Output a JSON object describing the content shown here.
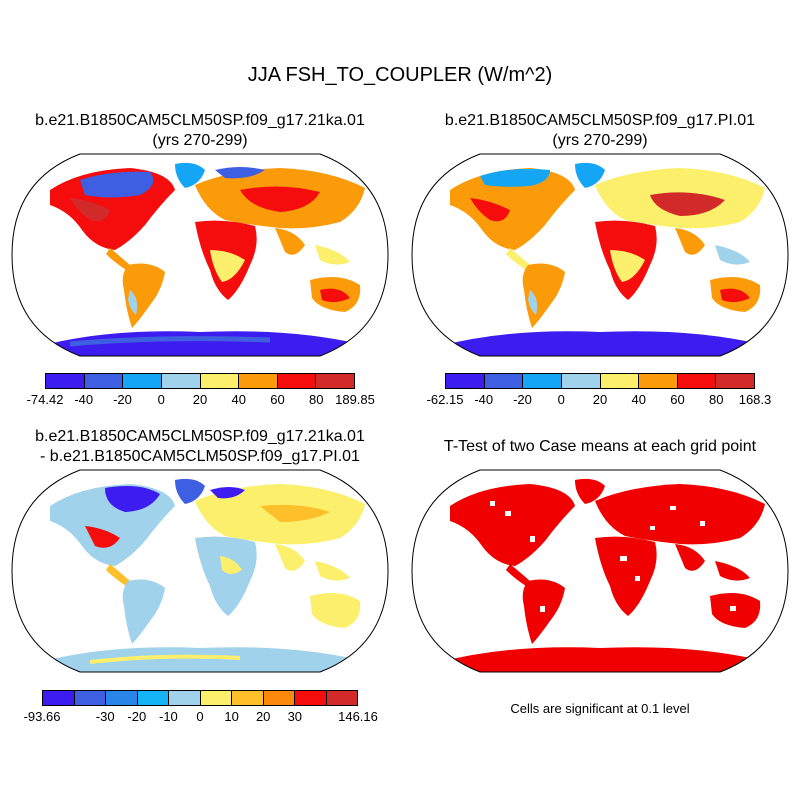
{
  "title": "JJA FSH_TO_COUPLER (W/m^2)",
  "panels": [
    {
      "title_line1": "b.e21.B1850CAM5CLM50SP.f09_g17.21ka.01",
      "title_line2": "(yrs 270-299)",
      "colorbar": {
        "colors": [
          "#3d1cf0",
          "#3f5fe2",
          "#14a6f5",
          "#a0d2ec",
          "#fcef6c",
          "#fb9b0a",
          "#f50d0d",
          "#d22929"
        ],
        "labels": [
          "-74.42",
          "-40",
          "-20",
          "0",
          "20",
          "40",
          "60",
          "80",
          "189.85"
        ]
      }
    },
    {
      "title_line1": "b.e21.B1850CAM5CLM50SP.f09_g17.PI.01",
      "title_line2": "(yrs 270-299)",
      "colorbar": {
        "colors": [
          "#3d1cf0",
          "#3f5fe2",
          "#14a6f5",
          "#a0d2ec",
          "#fcef6c",
          "#fb9b0a",
          "#f50d0d",
          "#d22929"
        ],
        "labels": [
          "-62.15",
          "-40",
          "-20",
          "0",
          "20",
          "40",
          "60",
          "80",
          "168.3"
        ]
      }
    },
    {
      "title_line1": "b.e21.B1850CAM5CLM50SP.f09_g17.21ka.01",
      "title_line2": "- b.e21.B1850CAM5CLM50SP.f09_g17.PI.01",
      "colorbar": {
        "colors": [
          "#3d1cf0",
          "#3f5fe2",
          "#2a85e8",
          "#14b4f5",
          "#a0d2ec",
          "#fcef6c",
          "#fdbf2a",
          "#fb8a0a",
          "#f50d0d",
          "#d22929"
        ],
        "labels": [
          "-93.66",
          "",
          "-30",
          "-20",
          "-10",
          "0",
          "10",
          "20",
          "30",
          "",
          "146.16"
        ]
      }
    },
    {
      "title_line1": "T-Test of two Case means at each grid point",
      "note": "Cells are significant at 0.1 level",
      "sig_color": "#f00000"
    }
  ]
}
